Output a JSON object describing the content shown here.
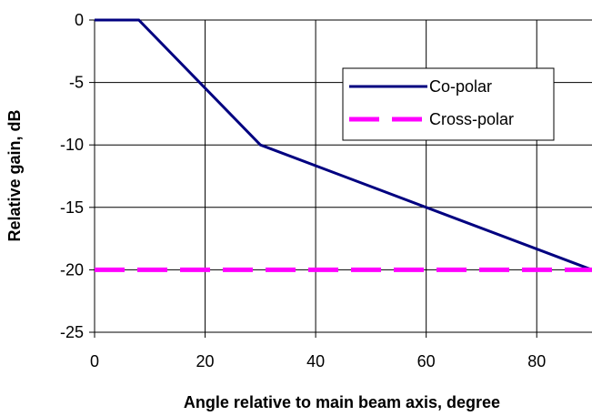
{
  "chart_data": {
    "type": "line",
    "xlabel": "Angle relative to main beam axis, degree",
    "ylabel": "Relative gain, dB",
    "xlim": [
      0,
      90
    ],
    "ylim": [
      -25,
      0
    ],
    "x_ticks": [
      "0",
      "20",
      "40",
      "60",
      "80"
    ],
    "y_ticks": [
      "0",
      "-5",
      "-10",
      "-15",
      "-20",
      "-25"
    ],
    "grid": true,
    "legend_position": "top-right",
    "series": [
      {
        "name": "Co-polar",
        "color": "#000080",
        "style": "solid",
        "x": [
          0,
          8,
          30,
          90
        ],
        "y": [
          0,
          0,
          -10,
          -20
        ]
      },
      {
        "name": "Cross-polar",
        "color": "#ff00ff",
        "style": "dashed",
        "x": [
          0,
          90
        ],
        "y": [
          -20,
          -20
        ]
      }
    ]
  }
}
